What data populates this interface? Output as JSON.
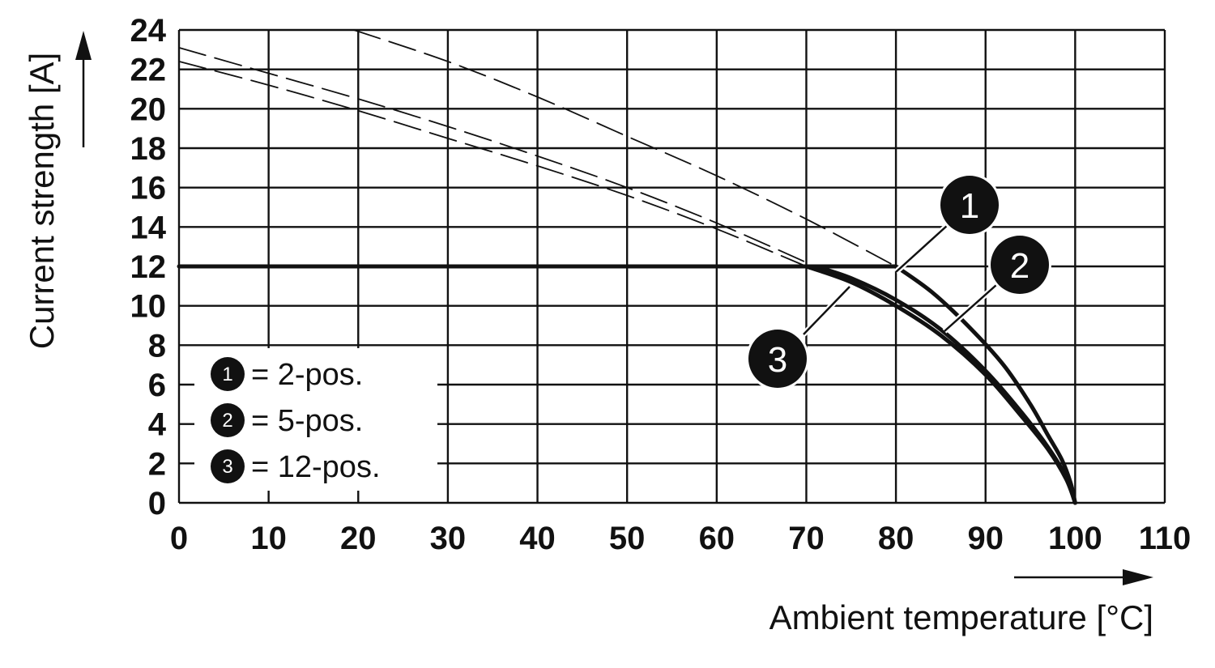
{
  "chart_data": {
    "type": "line",
    "title": "",
    "xlabel": "Ambient temperature [°C]",
    "ylabel": "Current strength [A]",
    "xlim": [
      0,
      110
    ],
    "ylim": [
      0,
      24
    ],
    "x_ticks": [
      0,
      10,
      20,
      30,
      40,
      50,
      60,
      70,
      80,
      90,
      100,
      110
    ],
    "y_ticks": [
      0,
      2,
      4,
      6,
      8,
      10,
      12,
      14,
      16,
      18,
      20,
      22,
      24
    ],
    "x_tick_labels": [
      "0",
      "10",
      "20",
      "30",
      "40",
      "50",
      "60",
      "70",
      "80",
      "90",
      "100",
      "110"
    ],
    "y_tick_labels": [
      "0",
      "2",
      "4",
      "6",
      "8",
      "10",
      "12",
      "14",
      "16",
      "18",
      "20",
      "22",
      "24"
    ],
    "grid": true,
    "legend_position": "bottom-left",
    "legend": [
      {
        "marker": "1",
        "label": "= 2-pos."
      },
      {
        "marker": "2",
        "label": "= 5-pos."
      },
      {
        "marker": "3",
        "label": "= 12-pos."
      }
    ],
    "callouts": [
      "1",
      "2",
      "3"
    ],
    "series": [
      {
        "marker": "1",
        "style": "solid",
        "x": [
          80,
          84,
          88,
          92,
          95,
          97,
          98.5,
          99.5,
          100
        ],
        "y": [
          12,
          10.7,
          9.0,
          7.0,
          5.0,
          3.4,
          2.2,
          1.0,
          0
        ]
      },
      {
        "marker": "2",
        "style": "solid",
        "x": [
          71,
          75,
          80,
          85,
          90,
          94,
          97,
          99,
          100
        ],
        "y": [
          12,
          11.4,
          10.3,
          8.8,
          6.7,
          4.6,
          2.8,
          1.3,
          0
        ]
      },
      {
        "marker": "3",
        "style": "solid",
        "x": [
          70,
          75,
          80,
          85,
          90,
          94,
          97,
          99,
          100
        ],
        "y": [
          12,
          11.2,
          10.0,
          8.5,
          6.5,
          4.4,
          2.7,
          1.2,
          0
        ]
      },
      {
        "marker": "1",
        "style": "dashed",
        "x": [
          19.5,
          30,
          40,
          50,
          60,
          70,
          80
        ],
        "y": [
          24,
          22.4,
          20.6,
          18.6,
          16.6,
          14.4,
          12
        ]
      },
      {
        "marker": "2",
        "style": "dashed",
        "x": [
          0,
          10,
          20,
          30,
          40,
          50,
          60,
          71
        ],
        "y": [
          23.1,
          21.8,
          20.5,
          19.1,
          17.6,
          16.0,
          14.2,
          12
        ]
      },
      {
        "marker": "3",
        "style": "dashed",
        "x": [
          0,
          10,
          20,
          30,
          40,
          50,
          60,
          70
        ],
        "y": [
          22.4,
          21.2,
          19.9,
          18.5,
          17.1,
          15.6,
          13.9,
          12
        ]
      },
      {
        "style": "solid",
        "x": [
          0,
          80
        ],
        "y": [
          12,
          12
        ]
      }
    ]
  }
}
